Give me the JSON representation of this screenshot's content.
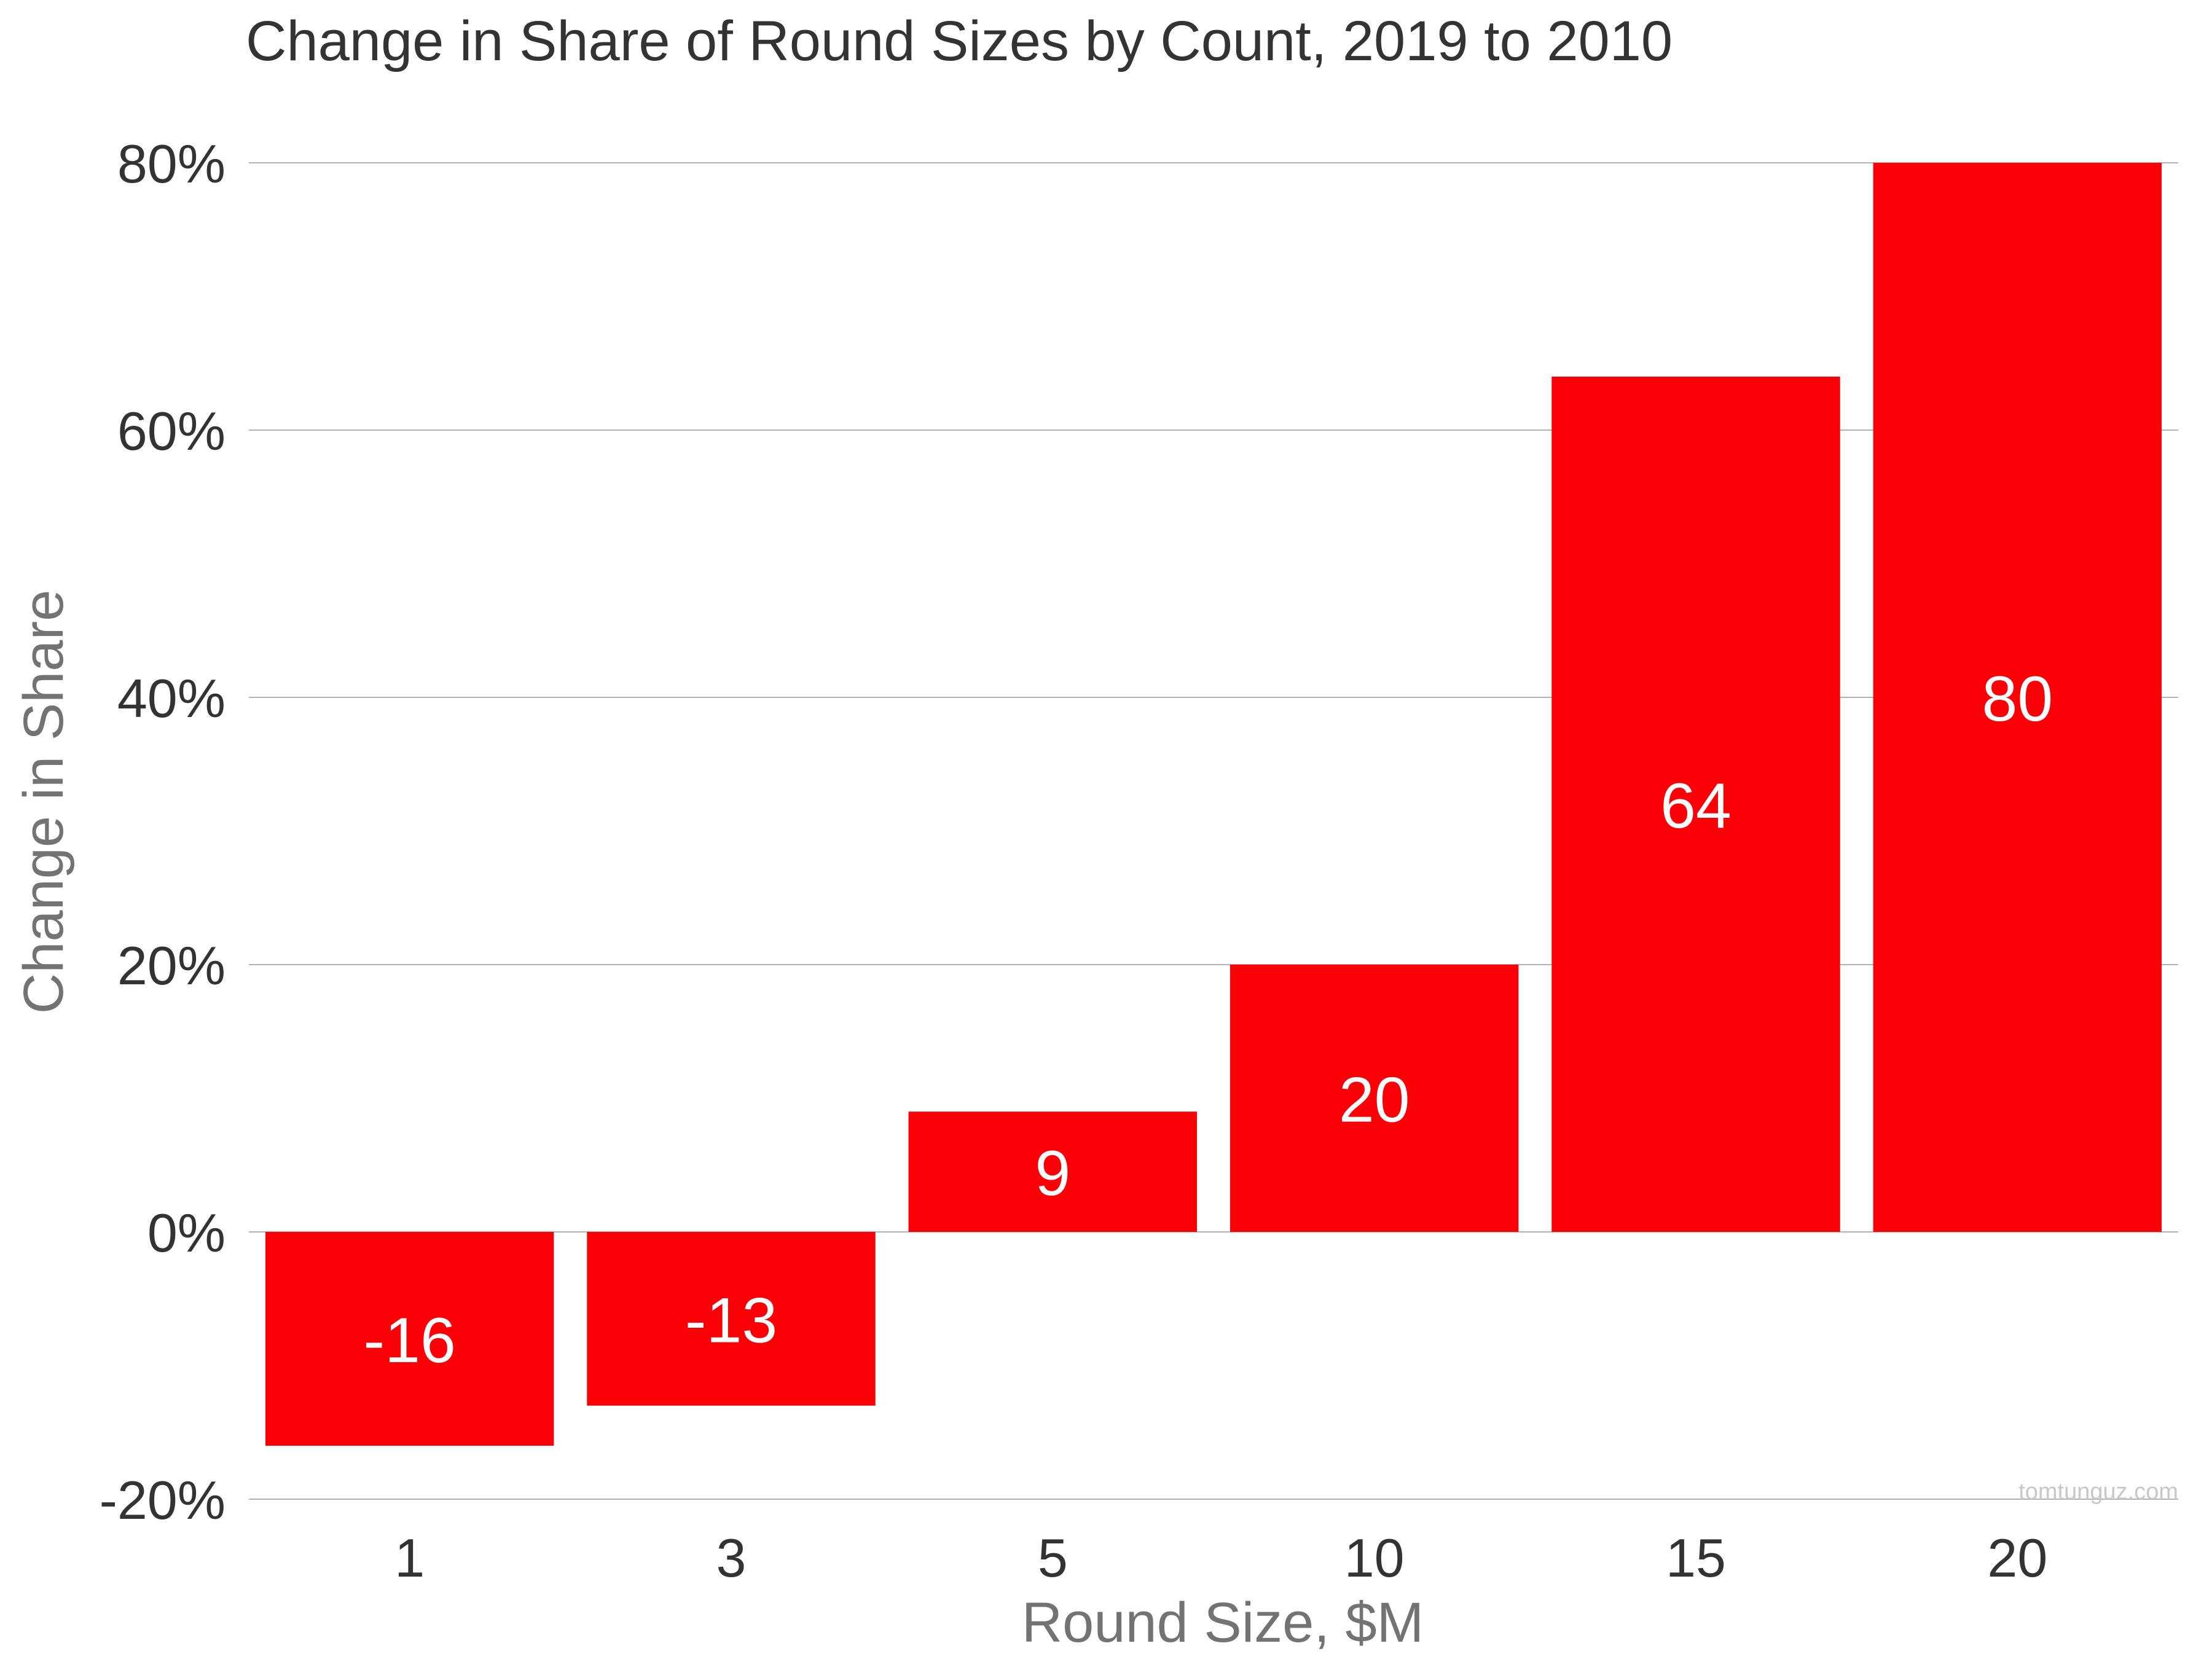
{
  "chart_data": {
    "type": "bar",
    "title": "Change in Share of Round Sizes by Count, 2019 to 2010",
    "xlabel": "Round Size, $M",
    "ylabel": "Change in Share",
    "categories": [
      "1",
      "3",
      "5",
      "10",
      "15",
      "20"
    ],
    "values": [
      -16,
      -13,
      9,
      20,
      64,
      80
    ],
    "data_labels": [
      "-16",
      "-13",
      "9",
      "20",
      "64",
      "80"
    ],
    "ylim": [
      -20,
      80
    ],
    "yticks": [
      -20,
      0,
      20,
      40,
      60,
      80
    ],
    "ytick_labels": [
      "-20%",
      "0%",
      "20%",
      "40%",
      "60%",
      "80%"
    ],
    "grid": true,
    "legend": false,
    "colors": {
      "bar": "#fc0008",
      "bar_label": "#ffffff",
      "grid": "#b3b3b3",
      "tick_text": "#333333",
      "axis_title": "#737373",
      "title_text": "#333333",
      "watermark": "#c8c8c8"
    }
  },
  "watermark": "tomtunguz.com"
}
